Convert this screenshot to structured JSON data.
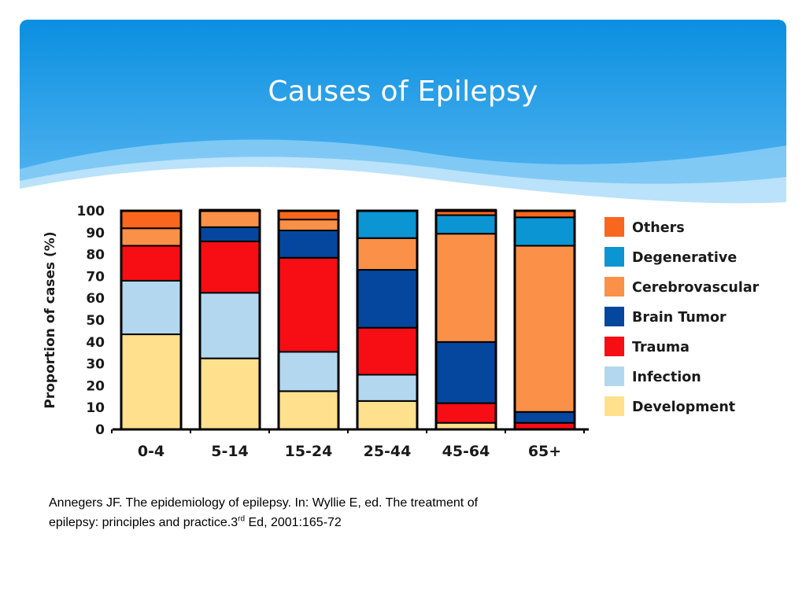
{
  "slide": {
    "title": "Causes of Epilepsy",
    "header_color": "#0a8fe0"
  },
  "citation": {
    "line1": "Annegers JF. The epidemiology of epilepsy. In: Wyllie E, ed. The treatment of",
    "line2_pre": "epilepsy: principles and practice.3",
    "line2_sup": "rd",
    "line2_post": " Ed, 2001:165-72"
  },
  "chart_data": {
    "type": "bar",
    "stacked": true,
    "title": "",
    "xlabel": "",
    "ylabel": "Proportion of cases (%)",
    "ylim": [
      0,
      100
    ],
    "yticks": [
      0,
      10,
      20,
      30,
      40,
      50,
      60,
      70,
      80,
      90,
      100
    ],
    "grid": false,
    "legend_position": "right",
    "categories": [
      "0-4",
      "5-14",
      "15-24",
      "25-44",
      "45-64",
      "65+"
    ],
    "series": [
      {
        "name": "Development",
        "color": "#ffe08c",
        "values": [
          43.5,
          32.5,
          17.5,
          13,
          3,
          0
        ]
      },
      {
        "name": "Infection",
        "color": "#b3d7ee",
        "values": [
          24.5,
          30,
          18,
          12,
          0,
          0
        ]
      },
      {
        "name": "Trauma",
        "color": "#f70d14",
        "values": [
          16,
          23.5,
          43,
          21.5,
          9,
          3
        ]
      },
      {
        "name": "Brain Tumor",
        "color": "#05479e",
        "values": [
          0,
          6.5,
          12.5,
          26.5,
          28,
          5
        ]
      },
      {
        "name": "Cerebrovascular",
        "color": "#fb9048",
        "values": [
          8,
          8,
          5,
          14.5,
          49.5,
          76
        ]
      },
      {
        "name": "Degenerative",
        "color": "#0b95d3",
        "values": [
          0,
          0,
          0,
          12.5,
          8.5,
          13
        ]
      },
      {
        "name": "Others",
        "color": "#f9661e",
        "values": [
          8,
          0,
          4,
          0,
          2.5,
          3
        ]
      }
    ]
  }
}
